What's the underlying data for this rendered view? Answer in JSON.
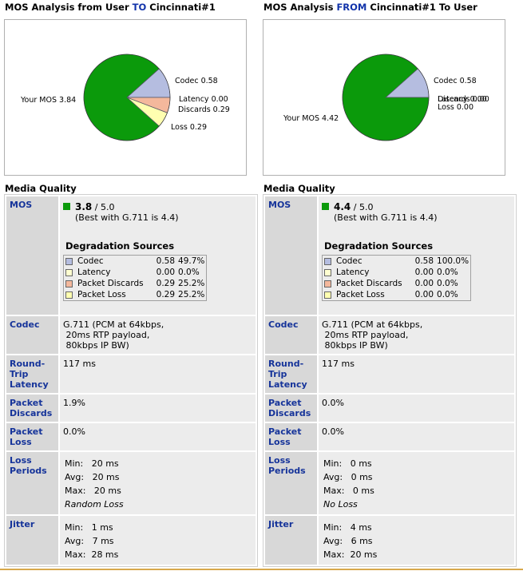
{
  "chart_data": [
    {
      "type": "pie",
      "title_parts": [
        "MOS Analysis from User ",
        "TO",
        " Cincinnati#1"
      ],
      "slices": [
        {
          "label": "Your MOS 3.84",
          "value": 3.84,
          "color": "#0b9a0b"
        },
        {
          "label": "Codec 0.58",
          "value": 0.58,
          "color": "#b5bde0"
        },
        {
          "label": "Latency 0.00",
          "value": 0.0,
          "color": "#ffffd0"
        },
        {
          "label": "Discards 0.29",
          "value": 0.29,
          "color": "#f4b89c"
        },
        {
          "label": "Loss 0.29",
          "value": 0.29,
          "color": "#ffffb0"
        }
      ]
    },
    {
      "type": "pie",
      "title_parts": [
        "MOS Analysis ",
        "FROM",
        " Cincinnati#1 To User"
      ],
      "slices": [
        {
          "label": "Your MOS 4.42",
          "value": 4.42,
          "color": "#0b9a0b"
        },
        {
          "label": "Codec 0.58",
          "value": 0.58,
          "color": "#b5bde0"
        },
        {
          "label": "Latency 0.00",
          "value": 0.0,
          "color": "#ffffd0"
        },
        {
          "label": "Discards 0.00",
          "value": 0.0,
          "color": "#f4b89c"
        },
        {
          "label": "Loss 0.00",
          "value": 0.0,
          "color": "#ffffb0"
        }
      ]
    }
  ],
  "panels": [
    {
      "title_a": "MOS Analysis from User ",
      "title_dir": "TO",
      "title_b": " Cincinnati#1",
      "media_quality": "Media Quality",
      "labels": {
        "mos": "MOS",
        "codec": "Codec",
        "rtl": "Round-Trip Latency",
        "discards": "Packet Discards",
        "loss": "Packet Loss",
        "periods": "Loss Periods",
        "jitter": "Jitter"
      },
      "mos_value": "3.8",
      "mos_max": " / 5.0",
      "mos_best": "(Best with G.711 is 4.4)",
      "deg_title": "Degradation Sources",
      "deg_rows": [
        {
          "name": "Codec",
          "value": "0.58",
          "pct": "49.7%",
          "color": "#b5bde0"
        },
        {
          "name": "Latency",
          "value": "0.00",
          "pct": "0.0%",
          "color": "#ffffd0"
        },
        {
          "name": "Packet Discards",
          "value": "0.29",
          "pct": "25.2%",
          "color": "#f4b89c"
        },
        {
          "name": "Packet Loss",
          "value": "0.29",
          "pct": "25.2%",
          "color": "#ffffb0"
        }
      ],
      "codec_lines": [
        "G.711 (PCM at 64kbps,",
        " 20ms RTP payload,",
        " 80kbps IP BW)"
      ],
      "rtl": "117 ms",
      "discards": "1.9%",
      "loss": "0.0%",
      "periods": {
        "min": "Min:   20 ms",
        "avg": "Avg:   20 ms",
        "max": "Max:   20 ms",
        "note": "Random Loss"
      },
      "jitter": {
        "min": "Min:   1 ms",
        "avg": "Avg:   7 ms",
        "max": "Max:  28 ms"
      }
    },
    {
      "title_a": "MOS Analysis ",
      "title_dir": "FROM",
      "title_b": " Cincinnati#1 To User",
      "media_quality": "Media Quality",
      "labels": {
        "mos": "MOS",
        "codec": "Codec",
        "rtl": "Round-Trip Latency",
        "discards": "Packet Discards",
        "loss": "Packet Loss",
        "periods": "Loss Periods",
        "jitter": "Jitter"
      },
      "mos_value": "4.4",
      "mos_max": " / 5.0",
      "mos_best": "(Best with G.711 is 4.4)",
      "deg_title": "Degradation Sources",
      "deg_rows": [
        {
          "name": "Codec",
          "value": "0.58",
          "pct": "100.0%",
          "color": "#b5bde0"
        },
        {
          "name": "Latency",
          "value": "0.00",
          "pct": "0.0%",
          "color": "#ffffd0"
        },
        {
          "name": "Packet Discards",
          "value": "0.00",
          "pct": "0.0%",
          "color": "#f4b89c"
        },
        {
          "name": "Packet Loss",
          "value": "0.00",
          "pct": "0.0%",
          "color": "#ffffb0"
        }
      ],
      "codec_lines": [
        "G.711 (PCM at 64kbps,",
        " 20ms RTP payload,",
        " 80kbps IP BW)"
      ],
      "rtl": "117 ms",
      "discards": "0.0%",
      "loss": "0.0%",
      "periods": {
        "min": "Min:   0 ms",
        "avg": "Avg:   0 ms",
        "max": "Max:   0 ms",
        "note": "No Loss"
      },
      "jitter": {
        "min": "Min:   4 ms",
        "avg": "Avg:   6 ms",
        "max": "Max:  20 ms"
      }
    }
  ]
}
